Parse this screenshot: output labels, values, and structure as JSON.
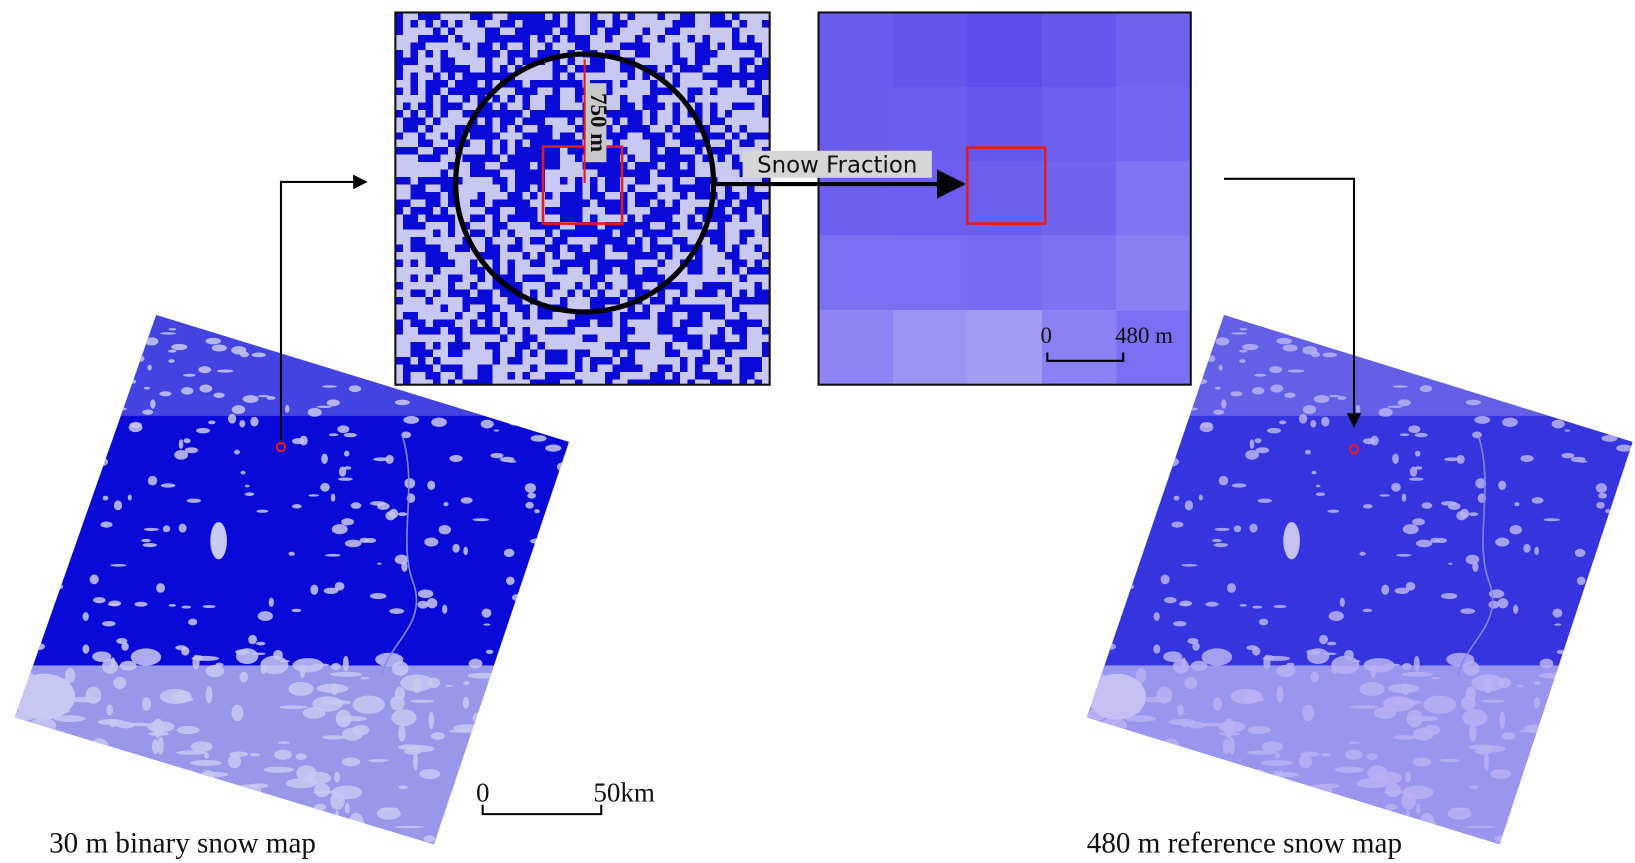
{
  "panels": {
    "binary": {
      "radius_label": "750 m"
    },
    "fraction": {
      "scale_start": "0",
      "scale_end": "480 m"
    }
  },
  "arrow_label": "Snow Fraction",
  "maps": {
    "left": {
      "caption": "30 m binary snow map",
      "scale_start": "0",
      "scale_end": "50km"
    },
    "right": {
      "caption": "480 m reference snow map"
    }
  }
}
